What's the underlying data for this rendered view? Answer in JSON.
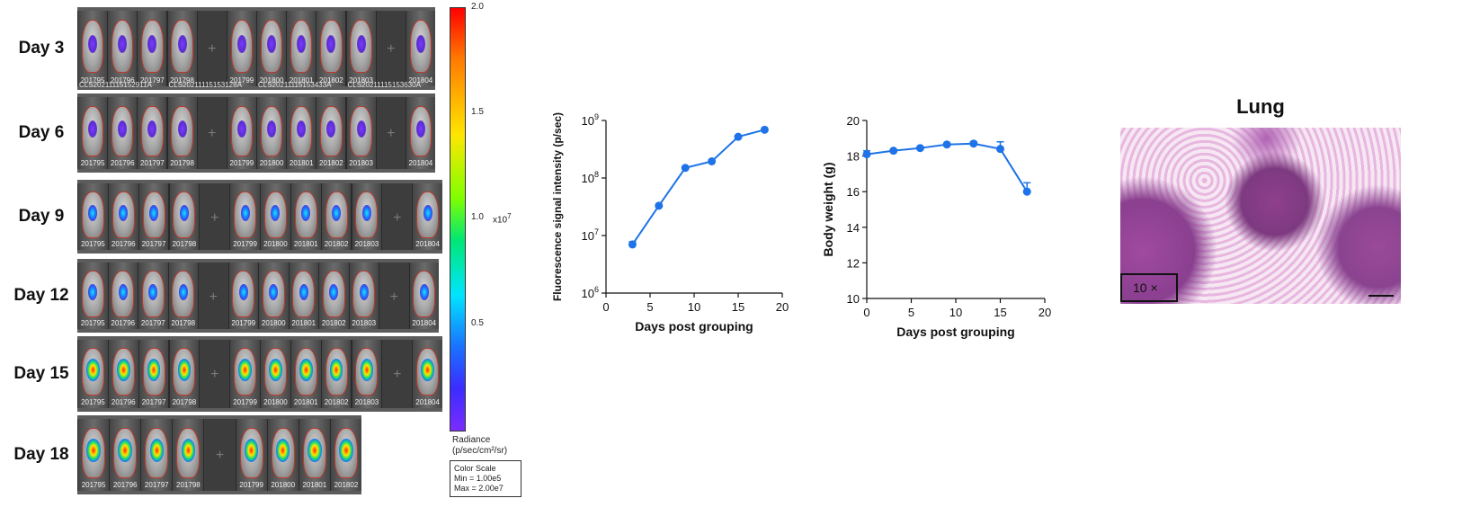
{
  "imaging": {
    "rows": [
      {
        "day": "Day 3",
        "intensity": "low",
        "ids": [
          "201795",
          "201796",
          "201797",
          "201798",
          "201799",
          "201800",
          "201801",
          "201802",
          "201803",
          "201804"
        ],
        "captions": [
          "CLS20211115152911A",
          "CLS20211115153128A",
          "CLS20211115153433A",
          "CLS20211115153630A"
        ]
      },
      {
        "day": "Day 6",
        "intensity": "low",
        "ids": [
          "201795",
          "201796",
          "201797",
          "201798",
          "201799",
          "201800",
          "201801",
          "201802",
          "201803",
          "201804"
        ],
        "captions": []
      },
      {
        "day": "Day 9",
        "intensity": "mid",
        "ids": [
          "201795",
          "201796",
          "201797",
          "201798",
          "201799",
          "201800",
          "201801",
          "201802",
          "201803",
          "201804"
        ],
        "captions": []
      },
      {
        "day": "Day 12",
        "intensity": "mid",
        "ids": [
          "201795",
          "201796",
          "201797",
          "201798",
          "201799",
          "201800",
          "201801",
          "201802",
          "201803",
          "201804"
        ],
        "captions": []
      },
      {
        "day": "Day 15",
        "intensity": "high",
        "ids": [
          "201795",
          "201796",
          "201797",
          "201798",
          "201799",
          "201800",
          "201801",
          "201802",
          "201803",
          "201804"
        ],
        "captions": []
      },
      {
        "day": "Day 18",
        "intensity": "high",
        "ids": [
          "201795",
          "201796",
          "201797",
          "201798",
          "201799",
          "201800",
          "201801",
          "201802"
        ],
        "captions": []
      }
    ],
    "colorbar": {
      "ticks": [
        "2.0",
        "1.5",
        "1.0",
        "0.5"
      ],
      "multiplier": "x10",
      "multiplier_exp": "7",
      "radiance_label": "Radiance",
      "radiance_unit": "(p/sec/cm²/sr)",
      "scale_title": "Color Scale",
      "scale_min": "Min = 1.00e5",
      "scale_max": "Max = 2.00e7",
      "colors": [
        "#ff0000",
        "#ffe600",
        "#00e676",
        "#1a73ff",
        "#7b2cff"
      ]
    }
  },
  "chart_data": [
    {
      "type": "line",
      "x": [
        3,
        6,
        9,
        12,
        15,
        18
      ],
      "series": [
        {
          "values": [
            7000000,
            33000000,
            150000000,
            195000000,
            520000000,
            690000000
          ],
          "error": [
            800000,
            0,
            0,
            0,
            0,
            0
          ]
        }
      ],
      "xlabel": "Days post grouping",
      "ylabel": "Fluorescence signal intensity (p/sec)",
      "xlim": [
        0,
        20
      ],
      "ylim": [
        1000000,
        1000000000
      ],
      "yscale": "log",
      "xticks": [
        0,
        5,
        10,
        15,
        20
      ],
      "yticks": [
        {
          "base": "10",
          "exp": "6"
        },
        {
          "base": "10",
          "exp": "7"
        },
        {
          "base": "10",
          "exp": "8"
        },
        {
          "base": "10",
          "exp": "9"
        }
      ],
      "grid": false,
      "color": "#1e73e8"
    },
    {
      "type": "line",
      "x": [
        0,
        3,
        6,
        9,
        12,
        15,
        18
      ],
      "series": [
        {
          "values": [
            18.1,
            18.3,
            18.45,
            18.65,
            18.7,
            18.4,
            16.0
          ],
          "error": [
            0.2,
            0,
            0,
            0,
            0.1,
            0.4,
            0.5
          ]
        }
      ],
      "xlabel": "Days post grouping",
      "ylabel": "Body weight (g)",
      "xlim": [
        0,
        20
      ],
      "ylim": [
        10,
        20
      ],
      "xticks": [
        0,
        5,
        10,
        15,
        20
      ],
      "yticks": [
        10,
        12,
        14,
        16,
        18,
        20
      ],
      "grid": false,
      "color": "#1e73e8"
    }
  ],
  "histology": {
    "title": "Lung",
    "magnification": "10 ×"
  }
}
